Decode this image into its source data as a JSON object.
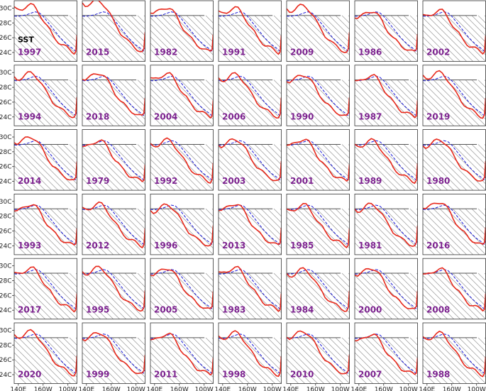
{
  "chart_data": {
    "type": "line",
    "label": "SST",
    "rows": 6,
    "cols": 7,
    "years": [
      "1997",
      "2015",
      "1982",
      "1991",
      "2009",
      "1986",
      "2002",
      "1994",
      "2018",
      "2004",
      "2006",
      "1990",
      "1987",
      "2019",
      "2014",
      "1979",
      "1992",
      "2003",
      "2001",
      "1989",
      "1980",
      "1993",
      "2012",
      "1996",
      "2013",
      "1985",
      "1981",
      "2016",
      "2017",
      "1995",
      "2005",
      "1983",
      "1984",
      "2000",
      "2008",
      "2020",
      "1999",
      "2011",
      "1998",
      "2010",
      "2007",
      "1988"
    ],
    "y_ticks": [
      "30C",
      "28C",
      "26C",
      "24C"
    ],
    "y_tick_values": [
      30,
      28,
      26,
      24
    ],
    "x_ticks": [
      "140E",
      "160W",
      "100W"
    ],
    "x_tick_values": [
      140,
      200,
      260
    ],
    "xlim": [
      130,
      282
    ],
    "ylim": [
      22.8,
      31.0
    ],
    "reference_level": 29.0,
    "climatology": {
      "x": [
        130,
        140,
        150,
        160,
        170,
        180,
        190,
        200,
        210,
        220,
        230,
        240,
        250,
        260,
        270,
        278,
        282
      ],
      "y": [
        28.9,
        28.9,
        29.0,
        29.1,
        29.3,
        29.5,
        29.4,
        28.9,
        28.2,
        27.5,
        26.8,
        26.1,
        25.5,
        25.0,
        24.6,
        24.2,
        24.6
      ]
    },
    "series_base": {
      "x": [
        130,
        137,
        143,
        150,
        157,
        163,
        170,
        177,
        183,
        190,
        197,
        203,
        210,
        217,
        223,
        230,
        237,
        243,
        250,
        257,
        263,
        270,
        275,
        279,
        282
      ],
      "y": [
        29.0,
        28.8,
        28.9,
        29.1,
        29.4,
        29.6,
        29.7,
        29.6,
        29.3,
        28.8,
        28.2,
        27.6,
        27.0,
        26.5,
        26.0,
        25.6,
        25.2,
        24.9,
        24.7,
        24.5,
        24.3,
        24.1,
        24.0,
        24.3,
        26.5
      ]
    },
    "panel_anomaly": [
      0.9,
      1.6,
      0.5,
      0.4,
      0.8,
      -0.1,
      0.0,
      0.3,
      0.3,
      0.2,
      0.1,
      0.0,
      -0.1,
      0.4,
      0.4,
      -0.2,
      -0.1,
      0.0,
      0.0,
      -0.2,
      -0.1,
      -0.1,
      0.0,
      -0.2,
      0.0,
      -0.2,
      -0.1,
      0.3,
      0.0,
      0.1,
      0.0,
      0.1,
      -0.2,
      0.0,
      -0.1,
      0.2,
      0.0,
      -0.2,
      0.0,
      0.2,
      -0.3,
      -0.1
    ],
    "colors": {
      "series": "#e8291c",
      "climatology": "#1a1ad6",
      "reference": "#555555",
      "hatch": "#9a9a9a",
      "year_label": "#7d2390",
      "frame": "#333333"
    }
  }
}
